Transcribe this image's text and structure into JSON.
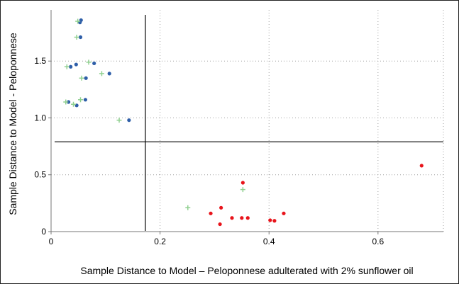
{
  "chart_data": {
    "type": "scatter",
    "xlabel": "Sample Distance to Model – Peloponnese adulterated with 2% sunflower oil",
    "ylabel": "Sample Distance to Model - Peloponnese",
    "xlim": [
      0,
      0.72
    ],
    "ylim": [
      0,
      1.95
    ],
    "x_ticks": [
      {
        "value": 0,
        "label": "0"
      },
      {
        "value": 0.2,
        "label": "0.2"
      },
      {
        "value": 0.4,
        "label": "0.4"
      },
      {
        "value": 0.6,
        "label": "0.6"
      }
    ],
    "y_ticks": [
      {
        "value": 0,
        "label": "0"
      },
      {
        "value": 0.5,
        "label": "0.5"
      },
      {
        "value": 1.0,
        "label": "1.0"
      },
      {
        "value": 1.5,
        "label": "1.5"
      }
    ],
    "grid": "dotted",
    "critical_lines": {
      "x": 0.173,
      "y": 0.79
    },
    "colors": {
      "blue": "#2e5ea8",
      "red": "#e8141b",
      "green": "#90d090",
      "axis": "#000000",
      "grid": "#a0a0a0"
    },
    "series": [
      {
        "marker": "circle",
        "color": "#2e5ea8",
        "points": [
          {
            "x": 0.055,
            "y": 1.86
          },
          {
            "x": 0.053,
            "y": 1.84
          },
          {
            "x": 0.054,
            "y": 1.71
          },
          {
            "x": 0.046,
            "y": 1.47
          },
          {
            "x": 0.036,
            "y": 1.45
          },
          {
            "x": 0.079,
            "y": 1.48
          },
          {
            "x": 0.107,
            "y": 1.39
          },
          {
            "x": 0.064,
            "y": 1.35
          },
          {
            "x": 0.032,
            "y": 1.14
          },
          {
            "x": 0.047,
            "y": 1.11
          },
          {
            "x": 0.063,
            "y": 1.16
          },
          {
            "x": 0.143,
            "y": 0.98
          }
        ]
      },
      {
        "marker": "circle",
        "color": "#e8141b",
        "points": [
          {
            "x": 0.352,
            "y": 0.43
          },
          {
            "x": 0.68,
            "y": 0.58
          },
          {
            "x": 0.293,
            "y": 0.16
          },
          {
            "x": 0.312,
            "y": 0.21
          },
          {
            "x": 0.31,
            "y": 0.065
          },
          {
            "x": 0.332,
            "y": 0.12
          },
          {
            "x": 0.35,
            "y": 0.12
          },
          {
            "x": 0.361,
            "y": 0.12
          },
          {
            "x": 0.402,
            "y": 0.1
          },
          {
            "x": 0.41,
            "y": 0.095
          },
          {
            "x": 0.427,
            "y": 0.16
          }
        ]
      },
      {
        "marker": "plus",
        "color": "#90d090",
        "points": [
          {
            "x": 0.049,
            "y": 1.85
          },
          {
            "x": 0.047,
            "y": 1.71
          },
          {
            "x": 0.029,
            "y": 1.45
          },
          {
            "x": 0.069,
            "y": 1.49
          },
          {
            "x": 0.093,
            "y": 1.39
          },
          {
            "x": 0.056,
            "y": 1.35
          },
          {
            "x": 0.027,
            "y": 1.14
          },
          {
            "x": 0.041,
            "y": 1.12
          },
          {
            "x": 0.054,
            "y": 1.16
          },
          {
            "x": 0.125,
            "y": 0.98
          },
          {
            "x": 0.352,
            "y": 0.37
          },
          {
            "x": 0.251,
            "y": 0.21
          }
        ]
      }
    ]
  }
}
